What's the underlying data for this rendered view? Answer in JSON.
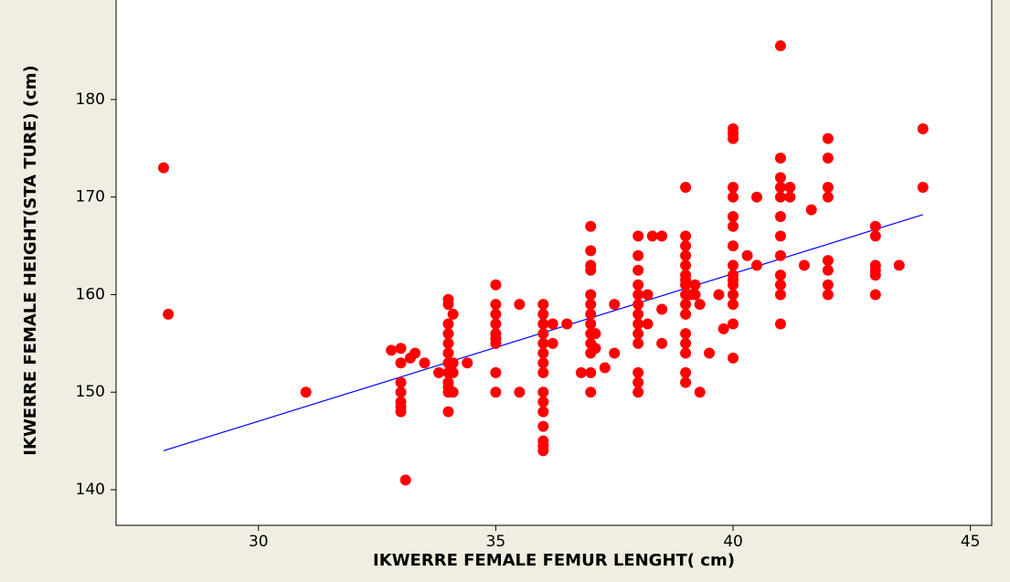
{
  "chart_data": {
    "type": "scatter",
    "x_label": "IKWERRE FEMALE FEMUR LENGHT( cm)",
    "y_label": "IKWERRE FEMALE  HEIGHT(STA TURE) (cm)",
    "color": "#ff0000",
    "x": [
      28,
      28.1,
      31,
      32.8,
      33,
      33,
      33,
      33,
      33,
      33,
      33,
      33.1,
      33.2,
      33.3,
      33.5,
      33.8,
      34,
      34,
      34,
      34,
      34,
      34,
      34,
      34,
      34,
      34,
      34,
      34,
      34.1,
      34.1,
      34.1,
      34.1,
      34.4,
      35,
      35,
      35,
      35,
      35,
      35,
      35,
      35,
      35,
      35.5,
      35.5,
      36,
      36,
      36,
      36,
      36,
      36,
      36,
      36,
      36,
      36,
      36,
      36,
      36,
      36,
      36,
      36.2,
      36.2,
      36.5,
      36.8,
      37,
      37,
      37,
      37,
      37,
      37,
      37,
      37,
      37,
      37,
      37,
      37,
      37,
      37.1,
      37.1,
      37.3,
      37.5,
      37.5,
      38,
      38,
      38,
      38,
      38,
      38,
      38,
      38,
      38,
      38,
      38,
      38,
      38,
      38.2,
      38.2,
      38.3,
      38.5,
      38.5,
      38.5,
      39,
      39,
      39,
      39,
      39,
      39,
      39,
      39,
      39,
      39,
      39,
      39,
      39,
      39,
      39,
      39,
      39.1,
      39.2,
      39.2,
      39.3,
      39.3,
      39.5,
      39.7,
      39.8,
      40,
      40,
      40,
      40,
      40,
      40,
      40,
      40,
      40,
      40,
      40,
      40,
      40,
      40,
      40,
      40,
      40.3,
      40.5,
      40.5,
      41,
      41,
      41,
      41,
      41,
      41,
      41,
      41,
      41,
      41,
      41,
      41,
      41.2,
      41.2,
      41.5,
      41.65,
      42,
      42,
      42,
      42,
      42,
      42,
      42,
      42,
      43,
      43,
      43,
      43,
      43,
      43,
      43.5,
      44,
      44
    ],
    "y": [
      173,
      158,
      150,
      154.3,
      154.5,
      153,
      151,
      150,
      149,
      148.5,
      148,
      141,
      153.5,
      154,
      153,
      152,
      159.5,
      159,
      157,
      156,
      155,
      154,
      153,
      152,
      151,
      150.5,
      150,
      148,
      158,
      153,
      152,
      150,
      153,
      161,
      159,
      158,
      157,
      156,
      155.5,
      155,
      152,
      150,
      159,
      150,
      159,
      158,
      157,
      156,
      155,
      154,
      153,
      152,
      150,
      149,
      148,
      146.5,
      145,
      144.5,
      144,
      157,
      155,
      157,
      152,
      167,
      164.5,
      163,
      162.5,
      160,
      159,
      158,
      157,
      156,
      155,
      154,
      152,
      150,
      156,
      154.5,
      152.5,
      159,
      154,
      166,
      164,
      162.5,
      161,
      160,
      159,
      158,
      157,
      156,
      155,
      152,
      151,
      150,
      160,
      157,
      166,
      166,
      158.5,
      155,
      171,
      166,
      165,
      164,
      163,
      162,
      161.5,
      161,
      160,
      159,
      158,
      156,
      155,
      154,
      152,
      151,
      160,
      161,
      160,
      159,
      150,
      154,
      160,
      156.5,
      177,
      176.5,
      176,
      171,
      170,
      168,
      167,
      165,
      163,
      162,
      161.5,
      161,
      160,
      159,
      157,
      153.5,
      164,
      170,
      163,
      185.5,
      174,
      172,
      171,
      170,
      168,
      166,
      164,
      162,
      161,
      160,
      157,
      171,
      170,
      163,
      168.7,
      176,
      174,
      171,
      170,
      163.5,
      162.5,
      161,
      160,
      167,
      166,
      163,
      162.5,
      162,
      160,
      163,
      177,
      171
    ],
    "fit_line": {
      "x": [
        28,
        44
      ],
      "y": [
        144,
        168.2
      ],
      "color": "#0000ff"
    },
    "xlim": [
      27,
      45.45
    ],
    "ylim": [
      136.35,
      190.2
    ],
    "xticks": [
      30,
      35,
      40,
      45
    ],
    "yticks": [
      140,
      150,
      160,
      170,
      180
    ]
  }
}
